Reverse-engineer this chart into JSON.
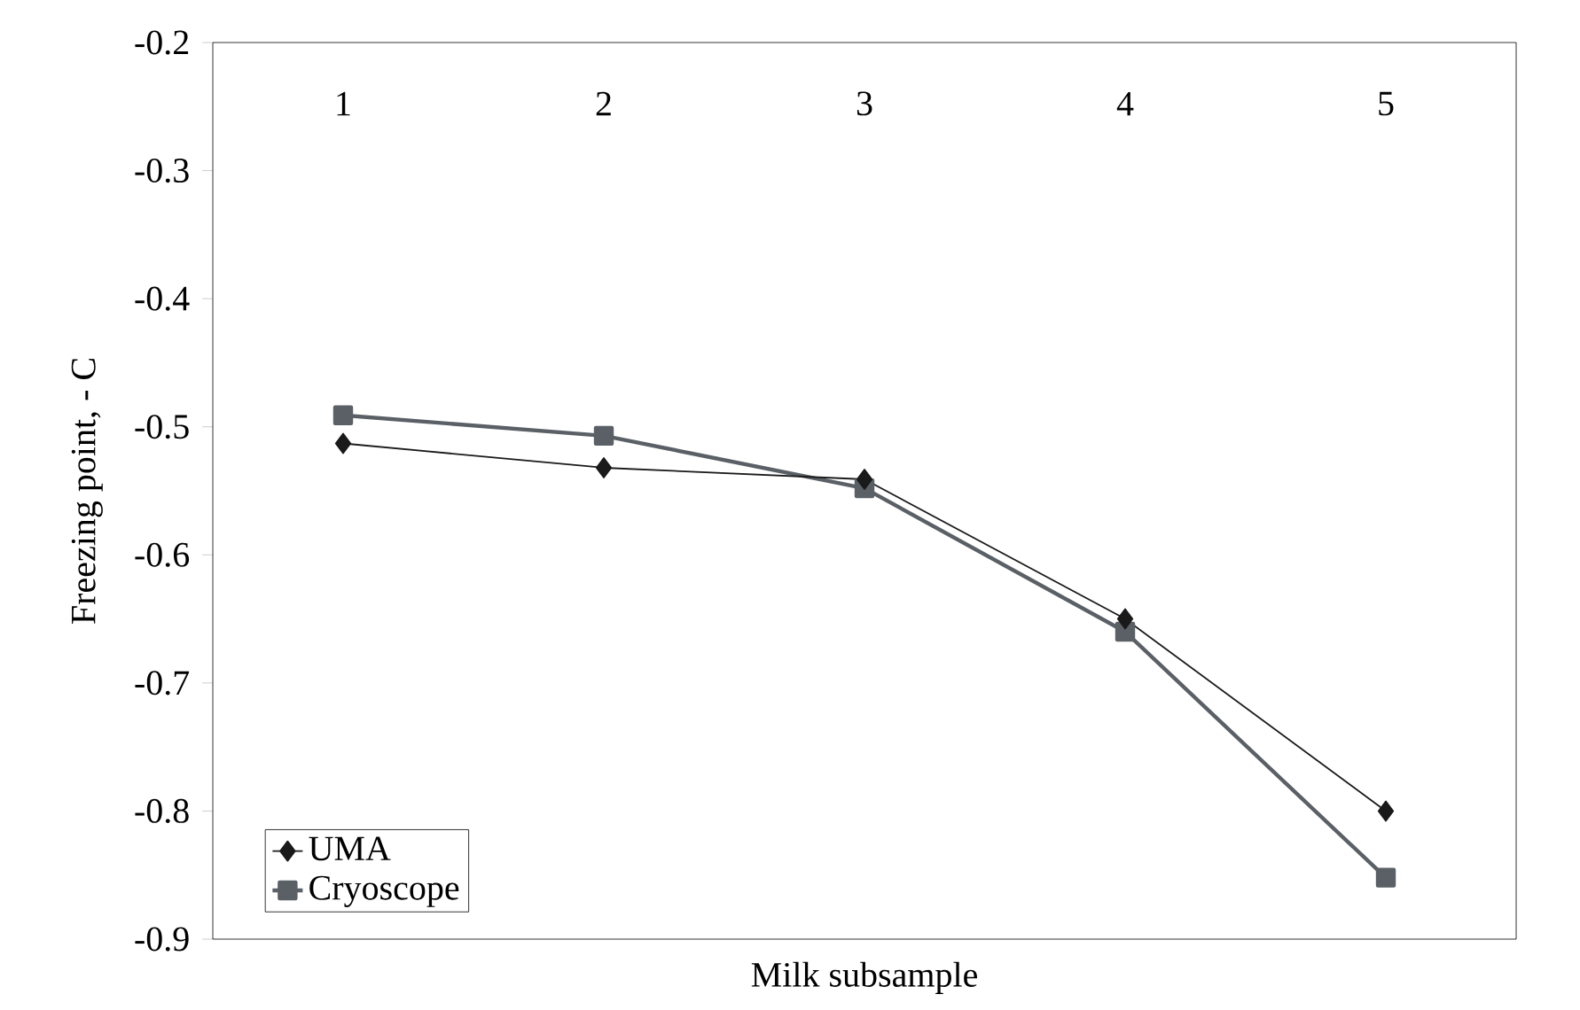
{
  "chart_data": {
    "type": "line",
    "xlabel": "Milk subsample",
    "ylabel": "Freezing point, - C",
    "categories": [
      "1",
      "2",
      "3",
      "4",
      "5"
    ],
    "series": [
      {
        "name": "UMA",
        "color": "#1a1a1a",
        "marker": "diamond",
        "values": [
          -0.513,
          -0.532,
          -0.541,
          -0.65,
          -0.8
        ]
      },
      {
        "name": "Cryoscope",
        "color": "#5a6066",
        "marker": "square",
        "values": [
          -0.491,
          -0.507,
          -0.548,
          -0.66,
          -0.852
        ]
      }
    ],
    "ylim": [
      -0.9,
      -0.2
    ],
    "yticks": [
      -0.9,
      -0.8,
      -0.7,
      -0.6,
      -0.5,
      -0.4,
      -0.3,
      -0.2
    ],
    "grid": false,
    "legend": "bottom left",
    "line_style": "solid"
  }
}
